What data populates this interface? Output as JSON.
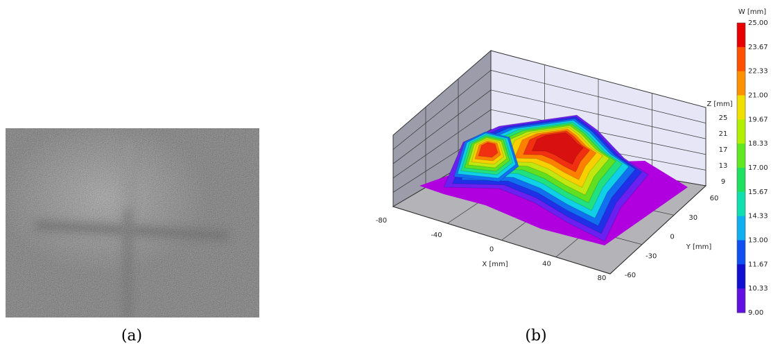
{
  "panels": [
    {
      "caption": "(a)"
    },
    {
      "caption": "(b)",
      "colorbar": {
        "label": "W [mm]",
        "ticks": [
          "25.00",
          "23.67",
          "22.33",
          "21.00",
          "19.67",
          "18.33",
          "17.00",
          "15.67",
          "14.33",
          "13.00",
          "11.67",
          "10.33",
          "9.00"
        ]
      },
      "z_axis": {
        "label": "Z [mm]",
        "ticks": [
          "25",
          "21",
          "17",
          "13",
          "9"
        ]
      },
      "x_axis": {
        "label": "X [mm]",
        "ticks": [
          "-80",
          "-40",
          "0",
          "40",
          "80"
        ]
      },
      "y_axis": {
        "label": "Y [mm]",
        "ticks": [
          "60",
          "30",
          "0",
          "-30",
          "-60"
        ]
      }
    }
  ]
}
